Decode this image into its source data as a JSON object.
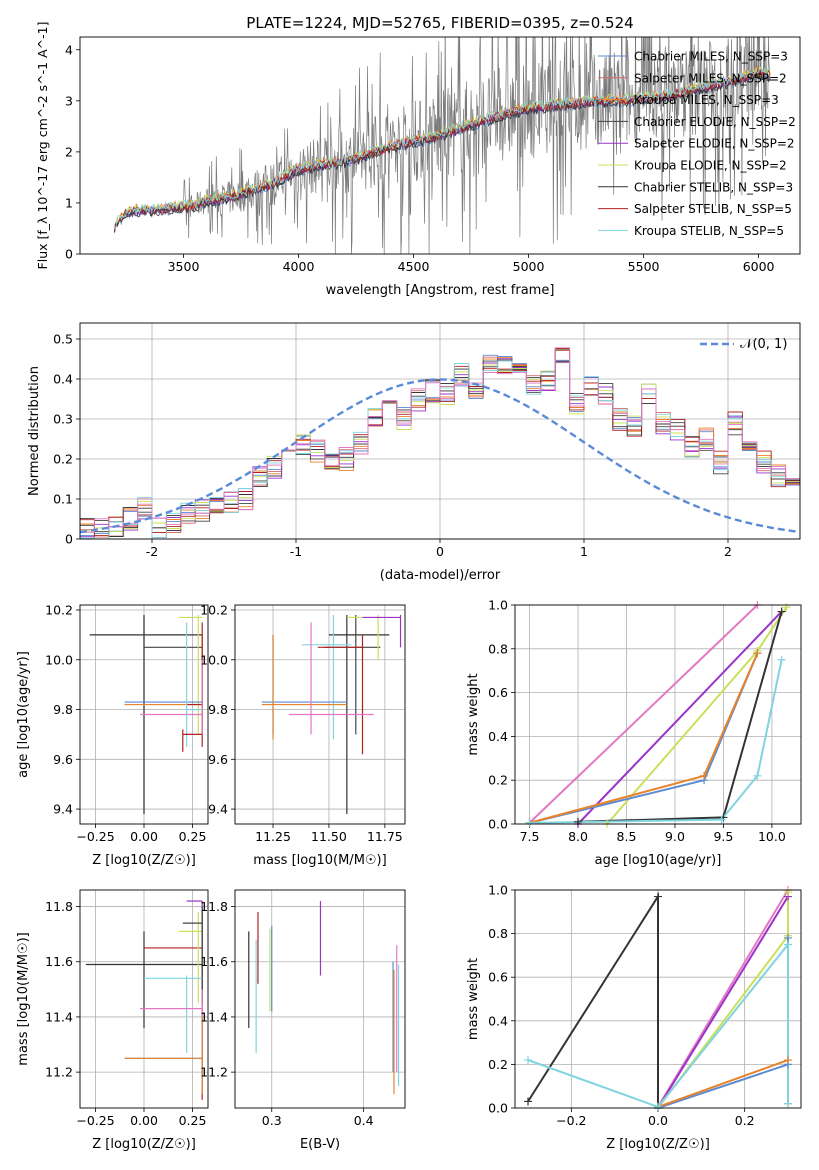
{
  "figure": {
    "title": "PLATE=1224, MJD=52765, FIBERID=0395, z=0.524"
  },
  "colors": {
    "chabrier_miles": "#5b8bd0",
    "salpeter_miles": "#d46a6a",
    "kroupa_miles": "#e8832c",
    "chabrier_elodie": "#444444",
    "salpeter_elodie": "#9b33c9",
    "kroupa_elodie": "#c9e05a",
    "chabrier_stelib": "#333333",
    "salpeter_stelib": "#b02020",
    "kroupa_stelib": "#80d4e0",
    "pink": "#e377c2",
    "gauss": "#5b8bd8",
    "data_spectrum": "#7a7a7a"
  },
  "chart_data": [
    {
      "id": "spectrum",
      "type": "line",
      "title": "PLATE=1224, MJD=52765, FIBERID=0395, z=0.524",
      "xlabel": "wavelength [Angstrom, rest frame]",
      "ylabel": "Flux [f_λ 10^-17 erg cm^-2 s^-1 A^-1]",
      "xlim": [
        3050,
        6180
      ],
      "ylim": [
        0,
        4.25
      ],
      "xticks": [
        3500,
        4000,
        4500,
        5000,
        5500,
        6000
      ],
      "yticks": [
        0,
        1,
        2,
        3,
        4
      ],
      "grid": false,
      "legend_position": "upper right",
      "legend": [
        "Chabrier MILES, N_SSP=3",
        "Salpeter MILES, N_SSP=2",
        "Kroupa MILES, N_SSP=3",
        "Chabrier ELODIE, N_SSP=2",
        "Salpeter ELODIE, N_SSP=2",
        "Kroupa ELODIE, N_SSP=2",
        "Chabrier STELIB, N_SSP=3",
        "Salpeter STELIB, N_SSP=5",
        "Kroupa STELIB, N_SSP=5"
      ],
      "model_trend": {
        "x": [
          3200,
          3250,
          3300,
          3400,
          3450,
          3500,
          3550,
          3600,
          3700,
          3800,
          3900,
          3950,
          4000,
          4100,
          4200,
          4300,
          4400,
          4500,
          4600,
          4700,
          4800,
          4900,
          5000,
          5100,
          5200,
          5300,
          5400,
          5500,
          5600,
          5700,
          5800,
          5900,
          6000,
          6050
        ],
        "y": [
          0.55,
          0.8,
          0.85,
          0.87,
          0.9,
          0.92,
          0.95,
          1.05,
          1.1,
          1.25,
          1.4,
          1.55,
          1.65,
          1.75,
          1.8,
          1.95,
          2.1,
          2.2,
          2.3,
          2.45,
          2.6,
          2.75,
          2.85,
          2.9,
          2.95,
          3.0,
          3.0,
          3.05,
          3.1,
          3.2,
          3.3,
          3.4,
          3.55,
          3.5
        ]
      },
      "data_range": [
        3200,
        6050
      ]
    },
    {
      "id": "residuals",
      "type": "line",
      "xlabel": "(data-model)/error",
      "ylabel": "Normed distribution",
      "xlim": [
        -2.5,
        2.5
      ],
      "ylim": [
        0,
        0.54
      ],
      "xticks": [
        -2,
        -1,
        0,
        1,
        2
      ],
      "yticks": [
        0.0,
        0.1,
        0.2,
        0.3,
        0.4,
        0.5
      ],
      "grid": true,
      "legend_position": "upper right",
      "legend": [
        "𝒩(0, 1)"
      ],
      "bin_width": 0.1,
      "hist_base": [
        0.02,
        0.022,
        0.025,
        0.03,
        0.05,
        0.08,
        0.025,
        0.04,
        0.06,
        0.07,
        0.08,
        0.09,
        0.1,
        0.16,
        0.18,
        0.22,
        0.24,
        0.22,
        0.19,
        0.2,
        0.24,
        0.31,
        0.34,
        0.3,
        0.35,
        0.37,
        0.36,
        0.41,
        0.38,
        0.44,
        0.43,
        0.41,
        0.38,
        0.4,
        0.45,
        0.34,
        0.38,
        0.36,
        0.3,
        0.28,
        0.36,
        0.29,
        0.27,
        0.23,
        0.25,
        0.19,
        0.29,
        0.23,
        0.19,
        0.16,
        0.14,
        0.13,
        0.12,
        0.1,
        0.09,
        0.07,
        0.05,
        0.04,
        0.05,
        0.04,
        0.03,
        0.03,
        0.02
      ],
      "hist_start": -2.6
    },
    {
      "id": "age_Z",
      "type": "scatter",
      "xlabel": "Z [log10(Z/Z☉)]",
      "ylabel": "age  [log10(age/yr)]",
      "xlim": [
        -0.33,
        0.33
      ],
      "ylim": [
        9.34,
        10.22
      ],
      "xticks": [
        -0.25,
        0.0,
        0.25
      ],
      "xticklabels": [
        "−0.25",
        "0.00",
        "0.25"
      ],
      "yticks": [
        9.4,
        9.6,
        9.8,
        10.0,
        10.2
      ],
      "yticklabels": [
        "9.4",
        "9.6",
        "9.8",
        "10.0",
        "10.2"
      ],
      "grid": true
    },
    {
      "id": "age_mass",
      "type": "scatter",
      "xlabel": "mass [log10(M/M☉)]",
      "xlim": [
        11.08,
        11.84
      ],
      "ylim": [
        9.34,
        10.22
      ],
      "xticks": [
        11.25,
        11.5,
        11.75
      ],
      "xticklabels": [
        "11.25",
        "11.50",
        "11.75"
      ],
      "yticks": [
        9.4,
        9.6,
        9.8,
        10.0,
        10.2
      ],
      "yticklabels": [
        "9.4",
        "9.6",
        "9.8",
        "10.0",
        "10.2"
      ],
      "grid": true
    },
    {
      "id": "weight_age",
      "type": "line",
      "xlabel": "age  [log10(age/yr)]",
      "ylabel": "mass weight",
      "xlim": [
        7.35,
        10.3
      ],
      "ylim": [
        0,
        1
      ],
      "xticks": [
        7.5,
        8.0,
        8.5,
        9.0,
        9.5,
        10.0
      ],
      "xticklabels": [
        "7.5",
        "8.0",
        "8.5",
        "9.0",
        "9.5",
        "10.0"
      ],
      "yticks": [
        0,
        0.2,
        0.4,
        0.6,
        0.8,
        1.0
      ],
      "yticklabels": [
        "0.0",
        "0.2",
        "0.4",
        "0.6",
        "0.8",
        "1.0"
      ],
      "grid": true
    },
    {
      "id": "mass_Z",
      "type": "scatter",
      "xlabel": "Z [log10(Z/Z☉)]",
      "ylabel": "mass [log10(M/M☉)]",
      "xlim": [
        -0.33,
        0.33
      ],
      "ylim": [
        11.07,
        11.86
      ],
      "xticks": [
        -0.25,
        0.0,
        0.25
      ],
      "xticklabels": [
        "−0.25",
        "0.00",
        "0.25"
      ],
      "yticks": [
        11.2,
        11.4,
        11.6,
        11.8
      ],
      "yticklabels": [
        "11.2",
        "11.4",
        "11.6",
        "11.8"
      ],
      "grid": true
    },
    {
      "id": "mass_ebv",
      "type": "scatter",
      "xlabel": "E(B-V)",
      "xlim": [
        0.26,
        0.445
      ],
      "ylim": [
        11.07,
        11.86
      ],
      "xticks": [
        0.3,
        0.4
      ],
      "xticklabels": [
        "0.3",
        "0.4"
      ],
      "yticks": [
        11.2,
        11.4,
        11.6,
        11.8
      ],
      "yticklabels": [
        "11.2",
        "11.4",
        "11.6",
        "11.8"
      ],
      "grid": true
    },
    {
      "id": "weight_Z",
      "type": "line",
      "xlabel": "Z [log10(Z/Z☉)]",
      "ylabel": "mass weight",
      "xlim": [
        -0.33,
        0.33
      ],
      "ylim": [
        0,
        1
      ],
      "xticks": [
        -0.2,
        0.0,
        0.2
      ],
      "xticklabels": [
        "−0.2",
        "0.0",
        "0.2"
      ],
      "yticks": [
        0,
        0.2,
        0.4,
        0.6,
        0.8,
        1.0
      ],
      "yticklabels": [
        "0.0",
        "0.2",
        "0.4",
        "0.6",
        "0.8",
        "1.0"
      ],
      "grid": true
    }
  ],
  "series": {
    "age_Z": [
      {
        "color": "chabrier_stelib",
        "h": [
          -0.28,
          0.3,
          10.1
        ],
        "v": [
          0.0,
          9.38,
          10.18
        ]
      },
      {
        "color": "chabrier_elodie",
        "h": [
          0.0,
          0.3,
          10.05
        ],
        "v": [
          0.0,
          9.38,
          10.18
        ]
      },
      {
        "color": "kroupa_elodie",
        "h": [
          0.18,
          0.3,
          10.17
        ],
        "v": [
          0.28,
          9.7,
          10.18
        ]
      },
      {
        "color": "chabrier_miles",
        "h": [
          -0.1,
          0.3,
          9.83
        ],
        "v": [
          0.3,
          9.7,
          10.1
        ]
      },
      {
        "color": "kroupa_miles",
        "h": [
          -0.1,
          0.3,
          9.82
        ],
        "v": [
          0.3,
          9.7,
          10.1
        ]
      },
      {
        "color": "salpeter_stelib",
        "h": [
          0.22,
          0.3,
          9.82
        ],
        "v": [
          0.3,
          9.65,
          10.15
        ]
      },
      {
        "color": "pink",
        "h": [
          -0.02,
          0.3,
          9.78
        ],
        "v": [
          0.3,
          9.7,
          10.0
        ]
      },
      {
        "color": "kroupa_stelib",
        "h": [
          0.22,
          0.3,
          9.8
        ],
        "v": [
          0.22,
          9.65,
          10.15
        ]
      },
      {
        "color": "salpeter_stelib",
        "h": [
          0.2,
          0.3,
          9.7
        ],
        "v": [
          0.2,
          9.63,
          9.72
        ]
      }
    ],
    "age_mass": [
      {
        "color": "chabrier_stelib",
        "h": [
          11.5,
          11.77,
          10.1
        ],
        "v": [
          11.58,
          9.38,
          10.18
        ]
      },
      {
        "color": "chabrier_elodie",
        "h": [
          11.48,
          11.73,
          10.05
        ],
        "v": [
          11.62,
          9.7,
          10.18
        ]
      },
      {
        "color": "kroupa_elodie",
        "h": [
          11.58,
          11.73,
          10.17
        ],
        "v": [
          11.72,
          10.0,
          10.18
        ]
      },
      {
        "color": "salpeter_elodie",
        "h": [
          11.65,
          11.82,
          10.17
        ],
        "v": [
          11.82,
          10.05,
          10.18
        ]
      },
      {
        "color": "kroupa_stelib",
        "h": [
          11.38,
          11.6,
          10.06
        ],
        "v": [
          11.52,
          9.68,
          10.18
        ]
      },
      {
        "color": "chabrier_miles",
        "h": [
          11.2,
          11.58,
          9.83
        ],
        "v": [
          11.25,
          9.7,
          10.1
        ]
      },
      {
        "color": "kroupa_miles",
        "h": [
          11.2,
          11.58,
          9.82
        ],
        "v": [
          11.25,
          9.68,
          10.1
        ]
      },
      {
        "color": "salpeter_stelib",
        "h": [
          11.45,
          11.65,
          10.05
        ],
        "v": [
          11.65,
          9.62,
          10.1
        ]
      },
      {
        "color": "pink",
        "h": [
          11.32,
          11.7,
          9.78
        ],
        "v": [
          11.42,
          9.7,
          10.15
        ]
      }
    ],
    "weight_age": [
      {
        "color": "pink",
        "pts": [
          [
            7.5,
            0.005
          ],
          [
            9.85,
            1.0
          ]
        ]
      },
      {
        "color": "salpeter_elodie",
        "pts": [
          [
            8.0,
            0.0
          ],
          [
            10.1,
            0.97
          ]
        ]
      },
      {
        "color": "kroupa_elodie",
        "pts": [
          [
            8.3,
            0.0
          ],
          [
            9.85,
            0.79
          ],
          [
            10.15,
            0.99
          ]
        ]
      },
      {
        "color": "chabrier_miles",
        "pts": [
          [
            7.5,
            0.005
          ],
          [
            9.3,
            0.2
          ],
          [
            9.85,
            0.78
          ]
        ]
      },
      {
        "color": "kroupa_miles",
        "pts": [
          [
            7.5,
            0.005
          ],
          [
            9.3,
            0.22
          ],
          [
            9.85,
            0.78
          ]
        ]
      },
      {
        "color": "chabrier_stelib",
        "pts": [
          [
            8.0,
            0.01
          ],
          [
            9.5,
            0.03
          ],
          [
            10.1,
            0.97
          ]
        ]
      },
      {
        "color": "kroupa_stelib",
        "pts": [
          [
            7.5,
            0.005
          ],
          [
            9.48,
            0.02
          ],
          [
            9.85,
            0.22
          ],
          [
            10.1,
            0.75
          ]
        ]
      }
    ],
    "mass_Z": [
      {
        "color": "chabrier_stelib",
        "h": [
          -0.3,
          0.3,
          11.59
        ],
        "v": [
          0.0,
          11.36,
          11.71
        ]
      },
      {
        "color": "salpeter_stelib",
        "h": [
          0.0,
          0.3,
          11.65
        ],
        "v": [
          0.3,
          11.1,
          11.78
        ]
      },
      {
        "color": "salpeter_elodie",
        "h": [
          0.22,
          0.3,
          11.82
        ],
        "v": [
          0.3,
          11.45,
          11.82
        ]
      },
      {
        "color": "kroupa_elodie",
        "h": [
          0.18,
          0.3,
          11.71
        ],
        "v": [
          0.28,
          11.45,
          11.78
        ]
      },
      {
        "color": "chabrier_elodie",
        "h": [
          0.2,
          0.3,
          11.74
        ],
        "v": [
          0.3,
          11.45,
          11.8
        ]
      },
      {
        "color": "kroupa_stelib",
        "h": [
          0.0,
          0.3,
          11.54
        ],
        "v": [
          0.22,
          11.27,
          11.55
        ]
      },
      {
        "color": "pink",
        "h": [
          -0.02,
          0.3,
          11.43
        ],
        "v": [
          0.3,
          11.3,
          11.5
        ]
      },
      {
        "color": "chabrier_miles",
        "h": [
          -0.1,
          0.3,
          11.25
        ],
        "v": [
          0.3,
          11.15,
          11.4
        ]
      },
      {
        "color": "kroupa_miles",
        "h": [
          -0.1,
          0.3,
          11.25
        ],
        "v": [
          0.3,
          11.12,
          11.4
        ]
      }
    ],
    "mass_ebv": [
      {
        "color": "chabrier_stelib",
        "v": [
          0.275,
          11.36,
          11.71
        ]
      },
      {
        "color": "salpeter_stelib",
        "v": [
          0.285,
          11.52,
          11.78
        ]
      },
      {
        "color": "kroupa_stelib",
        "v": [
          0.283,
          11.27,
          11.68
        ]
      },
      {
        "color": "kroupa_elodie",
        "v": [
          0.298,
          11.42,
          11.72
        ]
      },
      {
        "color": "chabrier_miles",
        "v": [
          0.3,
          11.42,
          11.73
        ]
      },
      {
        "color": "salpeter_elodie",
        "v": [
          0.353,
          11.55,
          11.82
        ]
      },
      {
        "color": "chabrier_miles",
        "v": [
          0.432,
          11.2,
          11.6
        ]
      },
      {
        "color": "kroupa_miles",
        "v": [
          0.433,
          11.12,
          11.57
        ]
      },
      {
        "color": "pink",
        "v": [
          0.436,
          11.2,
          11.66
        ]
      },
      {
        "color": "kroupa_stelib",
        "v": [
          0.438,
          11.15,
          11.59
        ]
      }
    ],
    "weight_Z": [
      {
        "color": "chabrier_stelib",
        "pts": [
          [
            -0.3,
            0.03
          ],
          [
            0.0,
            0.97
          ],
          [
            0.0,
            0.0
          ]
        ]
      },
      {
        "color": "pink",
        "pts": [
          [
            0.0,
            0.005
          ],
          [
            0.3,
            1.0
          ]
        ]
      },
      {
        "color": "salpeter_elodie",
        "pts": [
          [
            0.0,
            0.0
          ],
          [
            0.3,
            0.97
          ]
        ]
      },
      {
        "color": "kroupa_elodie",
        "pts": [
          [
            0.0,
            0.0
          ],
          [
            0.3,
            0.79
          ],
          [
            0.3,
            0.99
          ]
        ]
      },
      {
        "color": "chabrier_miles",
        "pts": [
          [
            0.0,
            0.0
          ],
          [
            0.3,
            0.2
          ],
          [
            0.3,
            0.78
          ]
        ]
      },
      {
        "color": "kroupa_miles",
        "pts": [
          [
            0.0,
            0.005
          ],
          [
            0.3,
            0.22
          ],
          [
            0.3,
            0.02
          ]
        ]
      },
      {
        "color": "kroupa_stelib",
        "pts": [
          [
            -0.3,
            0.22
          ],
          [
            0.0,
            0.005
          ],
          [
            0.3,
            0.75
          ],
          [
            0.3,
            0.02
          ]
        ]
      }
    ]
  }
}
